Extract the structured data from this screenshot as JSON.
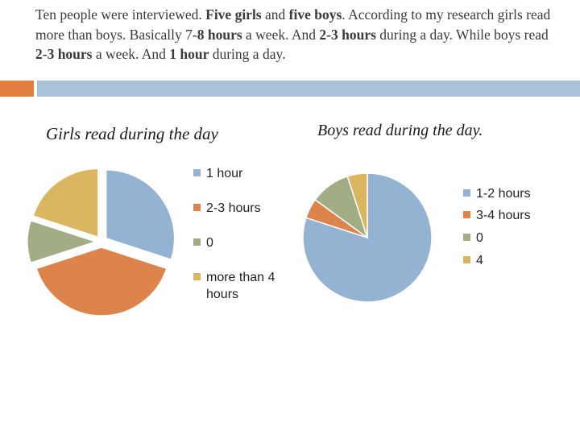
{
  "intro": {
    "segments": [
      {
        "text": "Ten people were interviewed. ",
        "bold": false
      },
      {
        "text": "Five girls",
        "bold": true
      },
      {
        "text": " and ",
        "bold": false
      },
      {
        "text": "five boys",
        "bold": true
      },
      {
        "text": ". According to my research girls  read more than boys. Basically 7-",
        "bold": false
      },
      {
        "text": "8 hours",
        "bold": true
      },
      {
        "text": " a week. And ",
        "bold": false
      },
      {
        "text": "2-3 hours",
        "bold": true
      },
      {
        "text": " during a day. While  boys read ",
        "bold": false
      },
      {
        "text": "2-3 hours",
        "bold": true
      },
      {
        "text": " a week. And ",
        "bold": false
      },
      {
        "text": "1 hour",
        "bold": true
      },
      {
        "text": " during  a day.",
        "bold": false
      }
    ]
  },
  "colors": {
    "accent_orange": "#e37f41",
    "accent_blue": "#a9c2d9"
  },
  "chart_data": [
    {
      "type": "pie",
      "title": "Girls read during the day",
      "categories": [
        "1 hour",
        "2-3 hours",
        "0",
        "more than 4 hours"
      ],
      "values": [
        30,
        40,
        10,
        20
      ],
      "colors": [
        "#94b3d3",
        "#dc844b",
        "#a3ad85",
        "#dbb660"
      ],
      "exploded": true,
      "legend_position": "right"
    },
    {
      "type": "pie",
      "title": "Boys read during the day.",
      "categories": [
        "1-2 hours",
        "3-4 hours",
        "0",
        "4"
      ],
      "values": [
        80,
        5,
        10,
        5
      ],
      "colors": [
        "#94b3d3",
        "#dc844b",
        "#a3ad85",
        "#dbb660"
      ],
      "exploded": false,
      "legend_position": "right"
    }
  ]
}
